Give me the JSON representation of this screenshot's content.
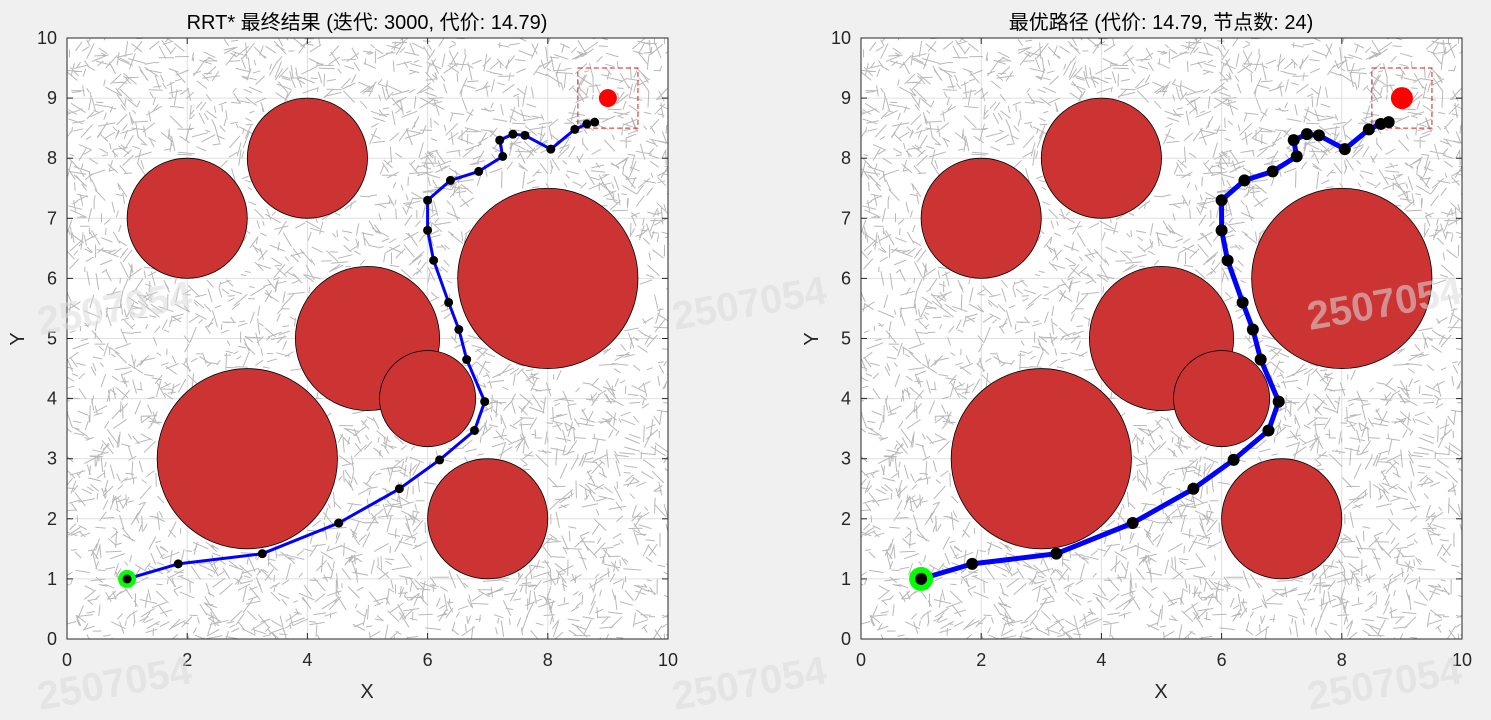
{
  "chart_data": [
    {
      "type": "scatter",
      "title": "RRT* 最终结果 (迭代: 3000, 代价: 14.79)",
      "xlabel": "X",
      "ylabel": "Y",
      "xlim": [
        0,
        10
      ],
      "ylim": [
        0,
        10
      ],
      "xticks": [
        "0",
        "2",
        "4",
        "6",
        "8",
        "10"
      ],
      "yticks": [
        "0",
        "1",
        "2",
        "3",
        "4",
        "5",
        "6",
        "7",
        "8",
        "9",
        "10"
      ],
      "grid": true,
      "show_tree": true,
      "obstacles": [
        {
          "cx": 2,
          "cy": 7,
          "r": 1
        },
        {
          "cx": 4,
          "cy": 8,
          "r": 1
        },
        {
          "cx": 5,
          "cy": 5,
          "r": 1.2
        },
        {
          "cx": 8,
          "cy": 6,
          "r": 1.5
        },
        {
          "cx": 3,
          "cy": 3,
          "r": 1.5
        },
        {
          "cx": 6,
          "cy": 4,
          "r": 0.8
        },
        {
          "cx": 7,
          "cy": 2,
          "r": 1
        }
      ],
      "start": {
        "x": 1,
        "y": 1
      },
      "goal": {
        "x": 9,
        "y": 9
      },
      "goal_region": {
        "xmin": 8.5,
        "xmax": 9.5,
        "ymin": 8.5,
        "ymax": 9.5
      },
      "path": [
        {
          "x": 1.0,
          "y": 1.0
        },
        {
          "x": 1.85,
          "y": 1.25
        },
        {
          "x": 3.25,
          "y": 1.42
        },
        {
          "x": 4.52,
          "y": 1.93
        },
        {
          "x": 5.53,
          "y": 2.5
        },
        {
          "x": 6.2,
          "y": 2.98
        },
        {
          "x": 6.78,
          "y": 3.47
        },
        {
          "x": 6.95,
          "y": 3.95
        },
        {
          "x": 6.65,
          "y": 4.65
        },
        {
          "x": 6.52,
          "y": 5.15
        },
        {
          "x": 6.35,
          "y": 5.6
        },
        {
          "x": 6.1,
          "y": 6.3
        },
        {
          "x": 6.0,
          "y": 6.8
        },
        {
          "x": 6.0,
          "y": 7.3
        },
        {
          "x": 6.38,
          "y": 7.63
        },
        {
          "x": 6.85,
          "y": 7.78
        },
        {
          "x": 7.25,
          "y": 8.03
        },
        {
          "x": 7.2,
          "y": 8.3
        },
        {
          "x": 7.42,
          "y": 8.4
        },
        {
          "x": 7.62,
          "y": 8.38
        },
        {
          "x": 8.05,
          "y": 8.15
        },
        {
          "x": 8.45,
          "y": 8.48
        },
        {
          "x": 8.65,
          "y": 8.57
        },
        {
          "x": 8.78,
          "y": 8.6
        }
      ],
      "watermark_text": "2507054"
    },
    {
      "type": "scatter",
      "title": "最优路径 (代价: 14.79, 节点数: 24)",
      "xlabel": "X",
      "ylabel": "Y",
      "xlim": [
        0,
        10
      ],
      "ylim": [
        0,
        10
      ],
      "xticks": [
        "0",
        "2",
        "4",
        "6",
        "8",
        "10"
      ],
      "yticks": [
        "0",
        "1",
        "2",
        "3",
        "4",
        "5",
        "6",
        "7",
        "8",
        "9",
        "10"
      ],
      "grid": true,
      "show_tree": false,
      "obstacles": [
        {
          "cx": 2,
          "cy": 7,
          "r": 1
        },
        {
          "cx": 4,
          "cy": 8,
          "r": 1
        },
        {
          "cx": 5,
          "cy": 5,
          "r": 1.2
        },
        {
          "cx": 8,
          "cy": 6,
          "r": 1.5
        },
        {
          "cx": 3,
          "cy": 3,
          "r": 1.5
        },
        {
          "cx": 6,
          "cy": 4,
          "r": 0.8
        },
        {
          "cx": 7,
          "cy": 2,
          "r": 1
        }
      ],
      "start": {
        "x": 1,
        "y": 1
      },
      "goal": {
        "x": 9,
        "y": 9
      },
      "goal_region": {
        "xmin": 8.5,
        "xmax": 9.5,
        "ymin": 8.5,
        "ymax": 9.5
      },
      "path": [
        {
          "x": 1.0,
          "y": 1.0
        },
        {
          "x": 1.85,
          "y": 1.25
        },
        {
          "x": 3.25,
          "y": 1.42
        },
        {
          "x": 4.52,
          "y": 1.93
        },
        {
          "x": 5.53,
          "y": 2.5
        },
        {
          "x": 6.2,
          "y": 2.98
        },
        {
          "x": 6.78,
          "y": 3.47
        },
        {
          "x": 6.95,
          "y": 3.95
        },
        {
          "x": 6.65,
          "y": 4.65
        },
        {
          "x": 6.52,
          "y": 5.15
        },
        {
          "x": 6.35,
          "y": 5.6
        },
        {
          "x": 6.1,
          "y": 6.3
        },
        {
          "x": 6.0,
          "y": 6.8
        },
        {
          "x": 6.0,
          "y": 7.3
        },
        {
          "x": 6.38,
          "y": 7.63
        },
        {
          "x": 6.85,
          "y": 7.78
        },
        {
          "x": 7.25,
          "y": 8.03
        },
        {
          "x": 7.2,
          "y": 8.3
        },
        {
          "x": 7.42,
          "y": 8.4
        },
        {
          "x": 7.62,
          "y": 8.38
        },
        {
          "x": 8.05,
          "y": 8.15
        },
        {
          "x": 8.45,
          "y": 8.48
        },
        {
          "x": 8.65,
          "y": 8.57
        },
        {
          "x": 8.78,
          "y": 8.6
        }
      ],
      "watermark_text": "2507054"
    }
  ],
  "colors": {
    "figure_bg": "#f0f0f0",
    "axes_bg": "#ffffff",
    "grid": "#dfdfdf",
    "axis": "#262626",
    "tree": "#b8b8b8",
    "obstacle_fill": "#cc3333",
    "obstacle_edge": "#000000",
    "path": "#0000ff",
    "node": "#000000",
    "start": "#00ff00",
    "goal": "#ff0000",
    "goal_region": "#cc2222"
  }
}
